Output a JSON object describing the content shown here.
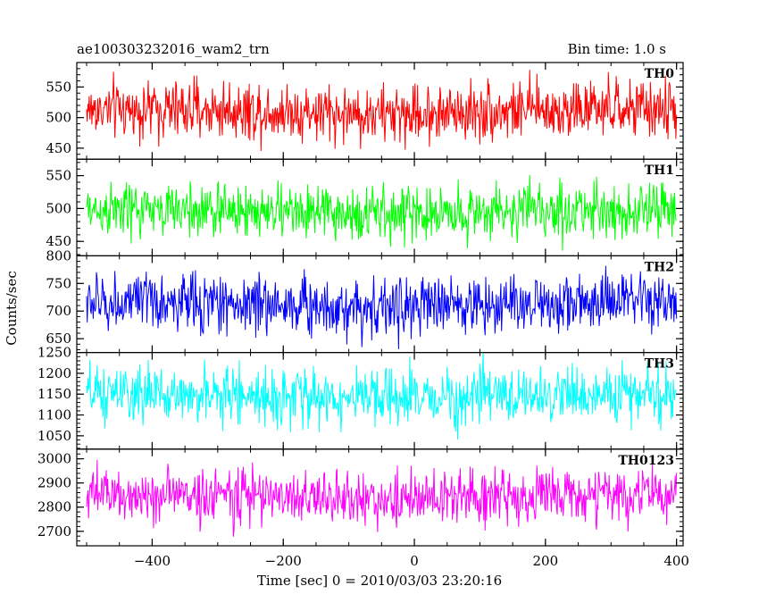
{
  "chart_data": {
    "type": "line",
    "title_left": "ae100303232016_wam2_trn",
    "title_right": "Bin time: 1.0 s",
    "xlabel": "Time [sec] 0 = 2010/03/03 23:20:16",
    "ylabel": "Counts/sec",
    "xlim": [
      -515,
      410
    ],
    "x_range": [
      -500,
      400
    ],
    "bin_time": 1.0,
    "x_ticks": [
      -400,
      -200,
      0,
      200,
      400
    ],
    "x_tick_labels": [
      "−400",
      "−200",
      "0",
      "200",
      "400"
    ],
    "grid": false,
    "panels": [
      {
        "name": "TH0",
        "color": "#ff0000",
        "ylim": [
          432,
          590
        ],
        "yticks": [
          450,
          500,
          550
        ],
        "ytick_labels": [
          "450",
          "500",
          "550"
        ],
        "mean": 513,
        "sigma": 24,
        "mid_dip": 8
      },
      {
        "name": "TH1",
        "color": "#00ff00",
        "ylim": [
          428,
          575
        ],
        "yticks": [
          450,
          500,
          550
        ],
        "ytick_labels": [
          "450",
          "500",
          "550"
        ],
        "mean": 497,
        "sigma": 21,
        "mid_dip": 6
      },
      {
        "name": "TH2",
        "color": "#0000ff",
        "ylim": [
          625,
          800
        ],
        "yticks": [
          650,
          700,
          750,
          800
        ],
        "ytick_labels": [
          "650",
          "700",
          "750",
          "800"
        ],
        "mean": 715,
        "sigma": 27,
        "mid_dip": 8
      },
      {
        "name": "TH3",
        "color": "#00ffff",
        "ylim": [
          1018,
          1250
        ],
        "yticks": [
          1050,
          1100,
          1150,
          1200,
          1250
        ],
        "ytick_labels": [
          "1050",
          "1100",
          "1150",
          "1200",
          "1250"
        ],
        "mean": 1148,
        "sigma": 34,
        "mid_dip": 10
      },
      {
        "name": "TH0123",
        "color": "#ff00ff",
        "ylim": [
          2640,
          3040
        ],
        "yticks": [
          2700,
          2800,
          2900,
          3000
        ],
        "ytick_labels": [
          "2700",
          "2800",
          "2900",
          "3000"
        ],
        "mean": 2850,
        "sigma": 57,
        "mid_dip": 20
      }
    ]
  }
}
